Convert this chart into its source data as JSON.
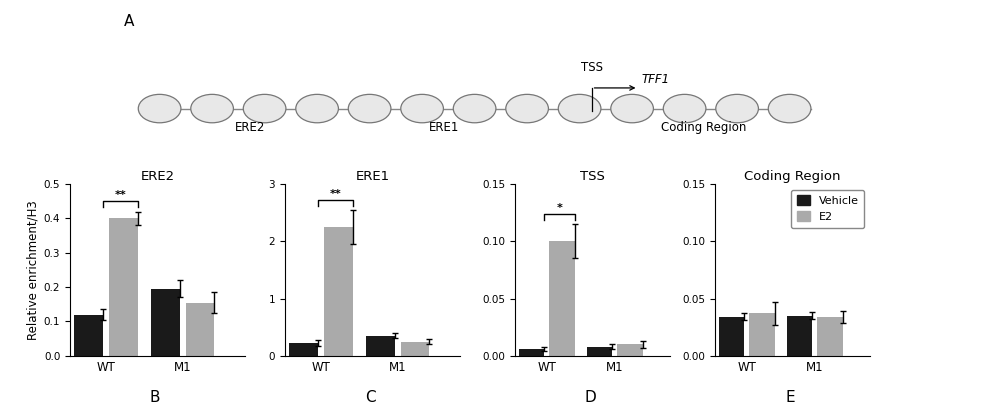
{
  "panels": [
    "B",
    "C",
    "D",
    "E"
  ],
  "panel_titles": [
    "ERE2",
    "ERE1",
    "TSS",
    "Coding Region"
  ],
  "groups": [
    "WT",
    "M1"
  ],
  "series": [
    "Vehicle",
    "E2"
  ],
  "bar_colors": [
    "#1a1a1a",
    "#aaaaaa"
  ],
  "bar_values": {
    "B": {
      "WT": [
        0.12,
        0.4
      ],
      "M1": [
        0.195,
        0.155
      ]
    },
    "C": {
      "WT": [
        0.22,
        2.25
      ],
      "M1": [
        0.35,
        0.25
      ]
    },
    "D": {
      "WT": [
        0.006,
        0.1
      ],
      "M1": [
        0.008,
        0.01
      ]
    },
    "E": {
      "WT": [
        0.034,
        0.037
      ],
      "M1": [
        0.035,
        0.034
      ]
    }
  },
  "error_values": {
    "B": {
      "WT": [
        0.015,
        0.02
      ],
      "M1": [
        0.025,
        0.03
      ]
    },
    "C": {
      "WT": [
        0.05,
        0.3
      ],
      "M1": [
        0.04,
        0.04
      ]
    },
    "D": {
      "WT": [
        0.002,
        0.015
      ],
      "M1": [
        0.002,
        0.003
      ]
    },
    "E": {
      "WT": [
        0.003,
        0.01
      ],
      "M1": [
        0.003,
        0.005
      ]
    }
  },
  "ylims": {
    "B": [
      0,
      0.5
    ],
    "C": [
      0,
      3
    ],
    "D": [
      0,
      0.15
    ],
    "E": [
      0,
      0.15
    ]
  },
  "yticks": {
    "B": [
      0.0,
      0.1,
      0.2,
      0.3,
      0.4,
      0.5
    ],
    "C": [
      0,
      1,
      2,
      3
    ],
    "D": [
      0.0,
      0.05,
      0.1,
      0.15
    ],
    "E": [
      0.0,
      0.05,
      0.1,
      0.15
    ]
  },
  "significance": {
    "B": "**",
    "C": "**",
    "D": "*",
    "E": null
  },
  "ylabel": "Relative enrichment/H3",
  "background_color": "#ffffff",
  "panel_letters": [
    "B",
    "C",
    "D",
    "E"
  ],
  "dna_label_left": "ERE2",
  "dna_label_mid": "ERE1",
  "dna_label_right": "Coding Region",
  "tss_label": "TSS",
  "gene_label": "TFF1"
}
